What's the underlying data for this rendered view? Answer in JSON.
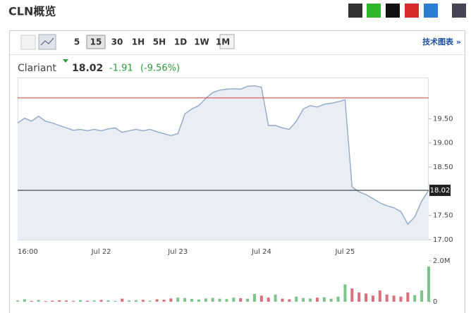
{
  "header": {
    "title": "CLN概览"
  },
  "toolbar": {
    "intervals": [
      "5",
      "15",
      "30",
      "1H",
      "5H",
      "1D",
      "1W",
      "1M"
    ],
    "link": "技术图表 »"
  },
  "quote": {
    "name": "Clariant",
    "price": "18.02",
    "change": "-1.91",
    "change_pct": "(-9.56%)"
  },
  "chart_data": {
    "type": "line",
    "categories": [
      "16:00",
      null,
      null,
      null,
      null,
      null,
      null,
      null,
      null,
      null,
      null,
      null,
      "Jul 22",
      null,
      null,
      null,
      null,
      null,
      null,
      null,
      null,
      null,
      null,
      "Jul 23",
      null,
      null,
      null,
      null,
      null,
      null,
      null,
      null,
      null,
      null,
      null,
      "Jul 24",
      null,
      null,
      null,
      null,
      null,
      null,
      null,
      null,
      null,
      null,
      null,
      "Jul 25",
      null,
      null,
      null,
      null,
      null,
      null,
      null,
      null,
      null,
      null,
      null,
      null
    ],
    "series": [
      {
        "color": "#8fa9c6",
        "values": [
          19.41,
          19.51,
          19.45,
          19.55,
          19.45,
          19.41,
          19.36,
          19.31,
          19.26,
          19.28,
          19.25,
          19.28,
          19.25,
          19.29,
          19.31,
          19.22,
          19.25,
          19.28,
          19.25,
          19.28,
          19.23,
          19.19,
          19.15,
          19.19,
          19.6,
          19.7,
          19.77,
          19.92,
          20.04,
          20.09,
          20.11,
          20.12,
          20.11,
          20.17,
          20.18,
          20.15,
          19.36,
          19.36,
          19.31,
          19.28,
          19.45,
          19.7,
          19.77,
          19.74,
          19.8,
          19.82,
          19.85,
          19.89,
          18.09,
          17.99,
          17.93,
          17.85,
          17.76,
          17.7,
          17.66,
          17.58,
          17.32,
          17.47,
          17.8,
          18.02
        ]
      }
    ],
    "ylim": [
      17.0,
      20.35
    ],
    "yticks": [
      {
        "value": 17,
        "label": "17.00"
      },
      {
        "value": 17.5,
        "label": "17.50"
      },
      {
        "value": 18.5,
        "label": "18.50"
      },
      {
        "value": 19,
        "label": "19.00"
      },
      {
        "value": 19.5,
        "label": "19.50"
      }
    ],
    "reference_lines": [
      {
        "value": 19.93,
        "color": "#d23a3a"
      },
      {
        "value": 18.02,
        "color": "#222222"
      }
    ],
    "volume": {
      "values": [
        60000,
        120000,
        40000,
        90000,
        30000,
        50000,
        70000,
        60000,
        40000,
        80000,
        50000,
        60000,
        90000,
        70000,
        40000,
        150000,
        60000,
        80000,
        90000,
        50000,
        120000,
        100000,
        160000,
        200000,
        180000,
        140000,
        110000,
        160000,
        190000,
        150000,
        130000,
        200000,
        170000,
        150000,
        380000,
        300000,
        200000,
        350000,
        150000,
        120000,
        250000,
        180000,
        160000,
        200000,
        220000,
        150000,
        250000,
        850000,
        650000,
        450000,
        400000,
        300000,
        550000,
        350000,
        300000,
        250000,
        450000,
        320000,
        550000,
        1720000
      ],
      "up_color": "#7cc48a",
      "down_color": "#d9707a",
      "ylim": [
        0,
        2000000
      ],
      "yticks": [
        {
          "value": 0,
          "label": "0"
        },
        {
          "value": 2000000,
          "label": "2.0M"
        }
      ]
    }
  }
}
